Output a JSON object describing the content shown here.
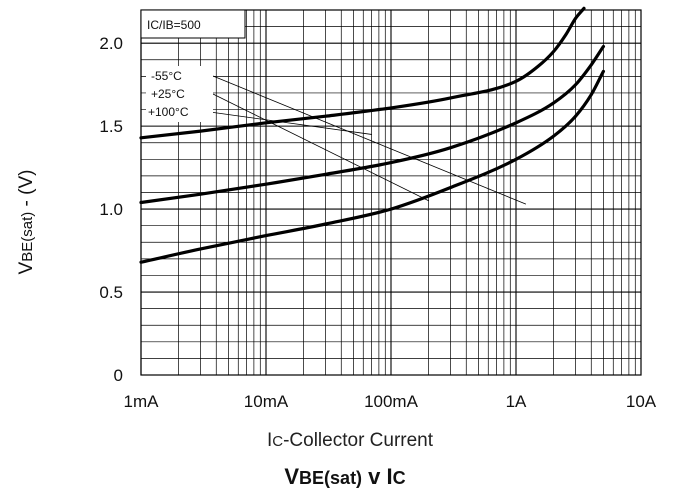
{
  "chart_data": {
    "type": "line",
    "title": {
      "main": "V",
      "main_sub": "BE(sat)",
      "mid": " v I",
      "end": "C"
    },
    "ylabel": {
      "main": "V",
      "sub": "BE(sat)",
      "rest": " - (V)"
    },
    "xlabel": {
      "pre": "I",
      "sub": "C",
      "rest": "-Collector Current"
    },
    "condition": "IC/IB=500",
    "x_scale": "log",
    "x_unit": "A",
    "xlim": [
      0.001,
      10
    ],
    "ylim": [
      0,
      2.2
    ],
    "x_ticks": [
      {
        "value": 0.001,
        "label": "1mA"
      },
      {
        "value": 0.01,
        "label": "10mA"
      },
      {
        "value": 0.1,
        "label": "100mA"
      },
      {
        "value": 1,
        "label": "1A"
      },
      {
        "value": 10,
        "label": "10A"
      }
    ],
    "y_ticks": [
      {
        "value": 0,
        "label": "0"
      },
      {
        "value": 0.5,
        "label": "0.5"
      },
      {
        "value": 1.0,
        "label": "1.0"
      },
      {
        "value": 1.5,
        "label": "1.5"
      },
      {
        "value": 2.0,
        "label": "2.0"
      }
    ],
    "grid": true,
    "series": [
      {
        "name": "-55°C",
        "x": [
          0.001,
          0.003,
          0.01,
          0.03,
          0.1,
          0.3,
          1,
          1.5,
          2,
          2.5,
          3,
          3.5
        ],
        "y": [
          1.43,
          1.47,
          1.52,
          1.56,
          1.61,
          1.67,
          1.77,
          1.86,
          1.95,
          2.05,
          2.15,
          2.21
        ]
      },
      {
        "name": "+25°C",
        "x": [
          0.001,
          0.003,
          0.01,
          0.03,
          0.1,
          0.3,
          1,
          2,
          3,
          4,
          5
        ],
        "y": [
          1.04,
          1.09,
          1.15,
          1.21,
          1.28,
          1.37,
          1.52,
          1.64,
          1.75,
          1.87,
          1.98
        ]
      },
      {
        "name": "+100°C",
        "x": [
          0.001,
          0.003,
          0.01,
          0.03,
          0.1,
          0.3,
          1,
          2,
          3,
          4,
          5
        ],
        "y": [
          0.68,
          0.76,
          0.84,
          0.91,
          1.0,
          1.13,
          1.3,
          1.44,
          1.56,
          1.69,
          1.83
        ]
      }
    ],
    "legend_labels": [
      {
        "text": "-55°C",
        "leader_to": {
          "x": 1.2,
          "y": 1.03
        }
      },
      {
        "text": "+25°C",
        "leader_to": {
          "x": 0.2,
          "y": 1.05
        }
      },
      {
        "text": "+100°C",
        "leader_to": {
          "x": 0.07,
          "y": 1.45
        }
      }
    ]
  }
}
